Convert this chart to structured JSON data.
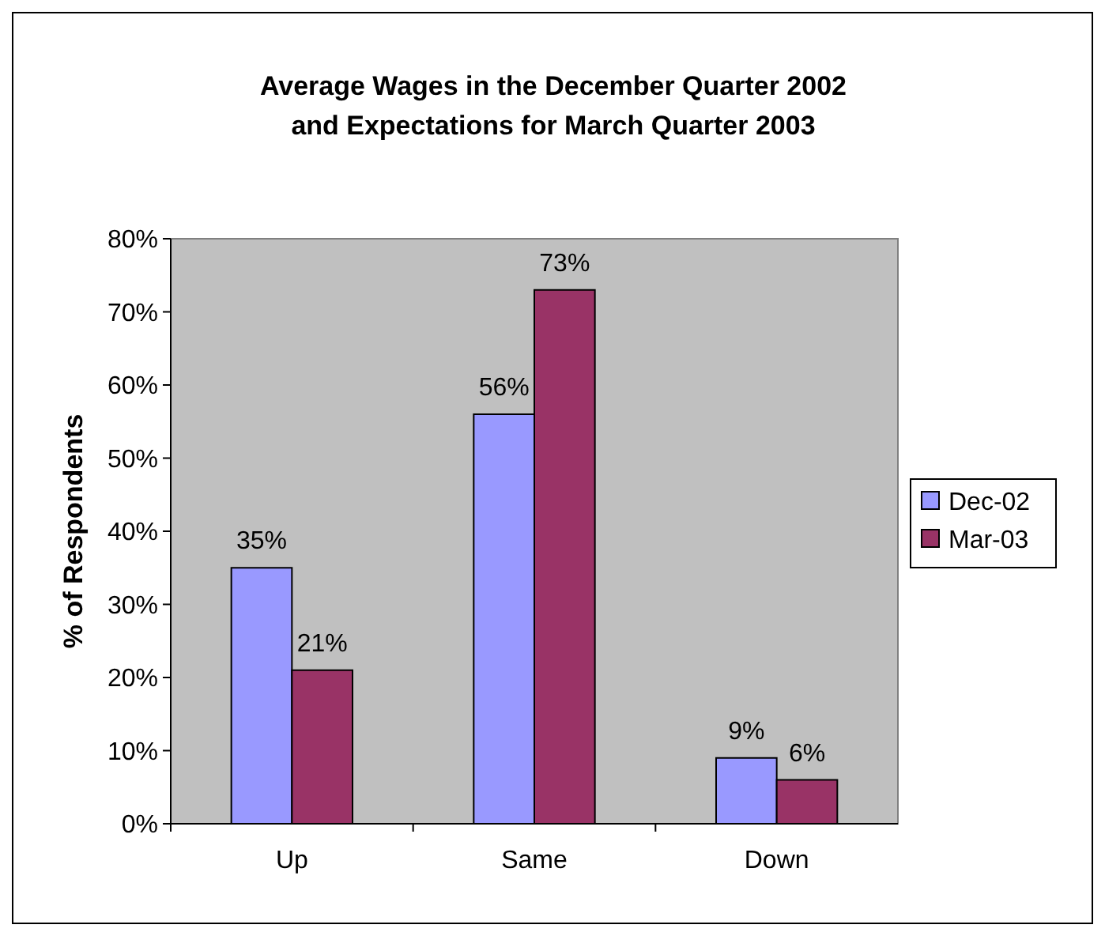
{
  "chart_data": {
    "type": "bar",
    "title": "Average Wages in the December Quarter 2002\nand Expectations for March Quarter 2003",
    "ylabel": "% of Respondents",
    "categories": [
      "Up",
      "Same",
      "Down"
    ],
    "series": [
      {
        "name": "Dec-02",
        "color": "#9999ff",
        "values": [
          35,
          56,
          9
        ],
        "value_labels": [
          "35%",
          "56%",
          "9%"
        ]
      },
      {
        "name": "Mar-03",
        "color": "#993366",
        "values": [
          21,
          73,
          6
        ],
        "value_labels": [
          "21%",
          "73%",
          "6%"
        ]
      }
    ],
    "ylim": [
      0,
      80
    ],
    "yticks": [
      {
        "value": 0,
        "label": "0%"
      },
      {
        "value": 10,
        "label": "10%"
      },
      {
        "value": 20,
        "label": "20%"
      },
      {
        "value": 30,
        "label": "30%"
      },
      {
        "value": 40,
        "label": "40%"
      },
      {
        "value": 50,
        "label": "50%"
      },
      {
        "value": 60,
        "label": "60%"
      },
      {
        "value": 70,
        "label": "70%"
      },
      {
        "value": 80,
        "label": "80%"
      }
    ],
    "legend": "right"
  }
}
